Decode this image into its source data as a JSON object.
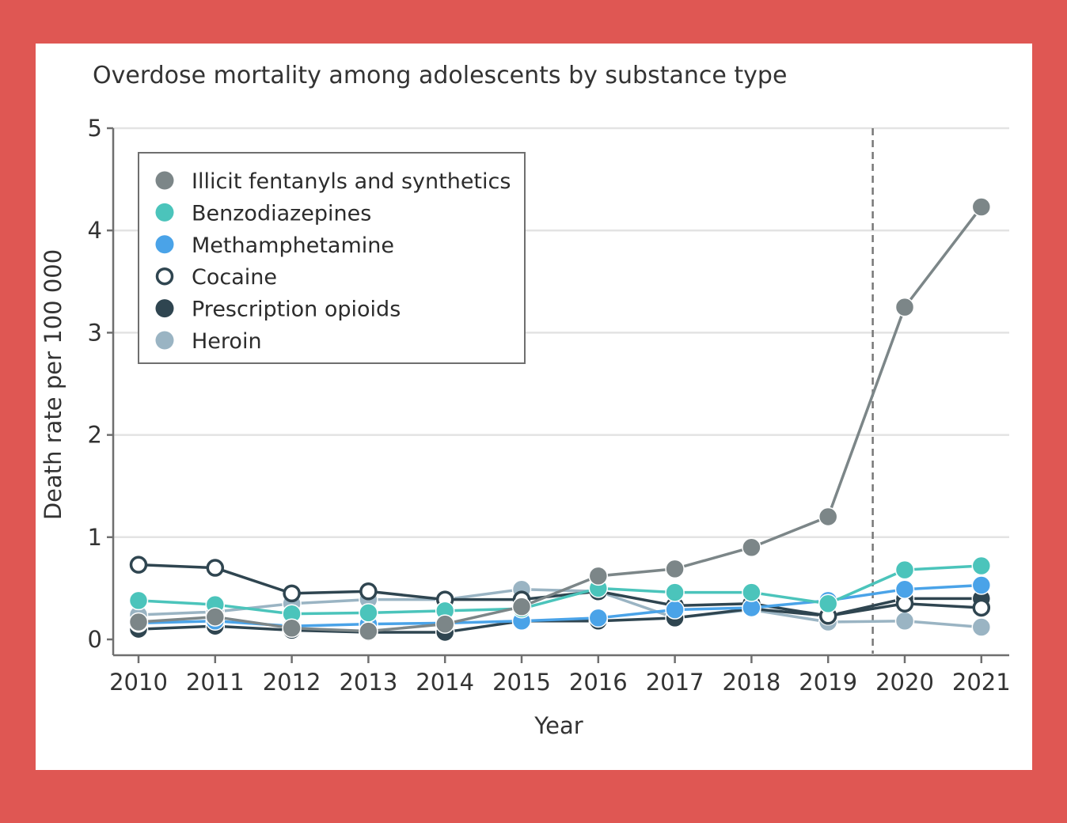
{
  "chart_data": {
    "type": "line",
    "title": "Overdose mortality among adolescents by substance type",
    "xlabel": "Year",
    "ylabel": "Death rate per 100 000",
    "categories": [
      "2010",
      "2011",
      "2012",
      "2013",
      "2014",
      "2015",
      "2016",
      "2017",
      "2018",
      "2019",
      "2020",
      "2021"
    ],
    "ylim": [
      0,
      5
    ],
    "yticks": [
      "0",
      "1",
      "2",
      "3",
      "4",
      "5"
    ],
    "grid": "horizontal",
    "legend_position": "top-left",
    "reference_line_between": [
      "2019",
      "2020"
    ],
    "series": [
      {
        "name": "Illicit fentanyls and synthetics",
        "color": "#7c8688",
        "marker": "filled",
        "values": [
          0.17,
          0.22,
          0.11,
          0.08,
          0.15,
          0.32,
          0.62,
          0.69,
          0.9,
          1.2,
          3.25,
          4.23
        ]
      },
      {
        "name": "Benzodiazepines",
        "color": "#4bc4bb",
        "marker": "filled",
        "values": [
          0.38,
          0.34,
          0.25,
          0.26,
          0.28,
          0.3,
          0.5,
          0.46,
          0.46,
          0.35,
          0.68,
          0.72
        ]
      },
      {
        "name": "Methamphetamine",
        "color": "#4aa3e8",
        "marker": "filled",
        "values": [
          0.16,
          0.18,
          0.13,
          0.15,
          0.16,
          0.18,
          0.21,
          0.29,
          0.31,
          0.38,
          0.49,
          0.53
        ]
      },
      {
        "name": "Cocaine",
        "color": "#2f4550",
        "marker": "open",
        "values": [
          0.73,
          0.7,
          0.45,
          0.47,
          0.39,
          0.39,
          0.47,
          0.33,
          0.35,
          0.23,
          0.35,
          0.31
        ]
      },
      {
        "name": "Prescription opioids",
        "color": "#2f4550",
        "marker": "filled",
        "values": [
          0.1,
          0.13,
          0.09,
          0.07,
          0.07,
          0.18,
          0.18,
          0.21,
          0.3,
          0.23,
          0.4,
          0.4
        ]
      },
      {
        "name": "Heroin",
        "color": "#9ab4c3",
        "marker": "filled",
        "values": [
          0.24,
          0.27,
          0.35,
          0.39,
          0.39,
          0.49,
          0.47,
          0.21,
          0.29,
          0.17,
          0.18,
          0.12
        ]
      }
    ]
  }
}
